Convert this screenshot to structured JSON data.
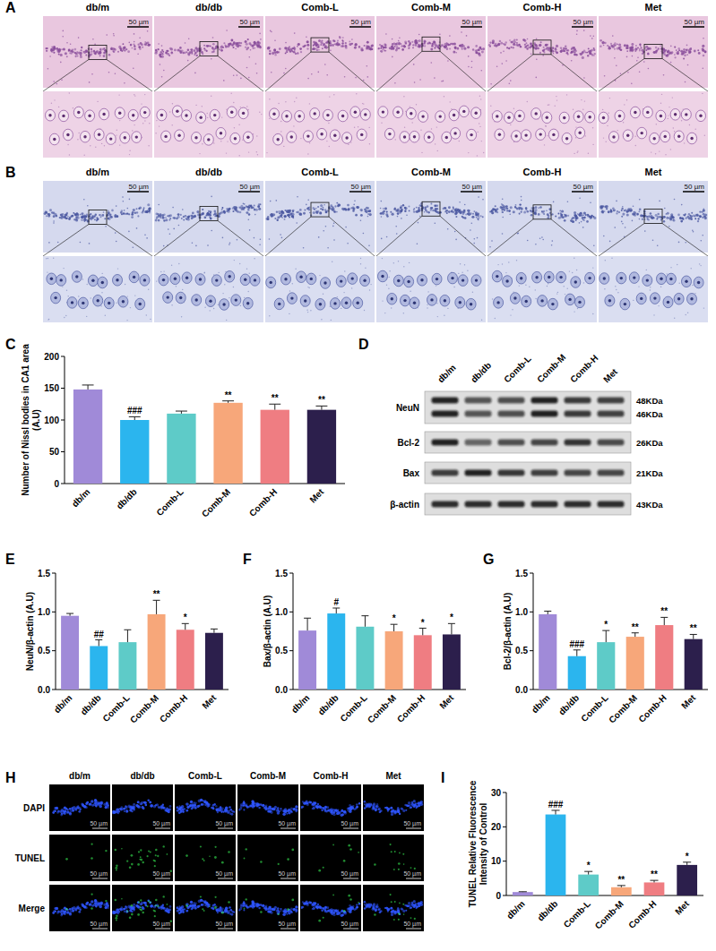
{
  "chart_data": [
    {
      "type": "bar",
      "panel": "C",
      "y_label": "Number of Nissl bodies in CA1 area (A.U)",
      "categories": [
        "db/m",
        "db/db",
        "Comb-L",
        "Comb-M",
        "Comb-H",
        "Met"
      ],
      "values": [
        148,
        100,
        110,
        127,
        116,
        116
      ],
      "errors": [
        7,
        5,
        4,
        3,
        9,
        6
      ],
      "annotations": [
        null,
        "###",
        null,
        "**",
        "**",
        "**"
      ],
      "colors": [
        "#a08ad8",
        "#2bb5ee",
        "#5ecbc8",
        "#f7a77a",
        "#ef7d82",
        "#2c1f4c"
      ],
      "ylim": [
        0,
        200
      ],
      "yticks": [
        0,
        50,
        100,
        150,
        200
      ]
    },
    {
      "type": "bar",
      "panel": "E",
      "y_label": "NeuN/β-actin (A.U)",
      "categories": [
        "db/m",
        "db/db",
        "Comb-L",
        "Comb-M",
        "Comb-H",
        "Met"
      ],
      "values": [
        0.95,
        0.56,
        0.61,
        0.97,
        0.77,
        0.73
      ],
      "errors": [
        0.03,
        0.08,
        0.16,
        0.18,
        0.08,
        0.05
      ],
      "annotations": [
        null,
        "##",
        null,
        "**",
        "*",
        null
      ],
      "colors": [
        "#a08ad8",
        "#2bb5ee",
        "#5ecbc8",
        "#f7a77a",
        "#ef7d82",
        "#2c1f4c"
      ],
      "ylim": [
        0,
        1.5
      ],
      "yticks": [
        {
          "value": 0,
          "label": "0.0"
        },
        {
          "value": 0.5,
          "label": "0.5"
        },
        {
          "value": 1,
          "label": "1.0"
        },
        {
          "value": 1.5,
          "label": "1.5"
        }
      ]
    },
    {
      "type": "bar",
      "panel": "F",
      "y_label": "Bax/β-actin (A.U)",
      "categories": [
        "db/m",
        "db/db",
        "Comb-L",
        "Comb-M",
        "Comb-H",
        "Met"
      ],
      "values": [
        0.76,
        0.98,
        0.81,
        0.75,
        0.7,
        0.71
      ],
      "errors": [
        0.16,
        0.07,
        0.14,
        0.09,
        0.09,
        0.14
      ],
      "annotations": [
        null,
        "#",
        null,
        "*",
        "*",
        "*"
      ],
      "colors": [
        "#a08ad8",
        "#2bb5ee",
        "#5ecbc8",
        "#f7a77a",
        "#ef7d82",
        "#2c1f4c"
      ],
      "ylim": [
        0,
        1.5
      ],
      "yticks": [
        {
          "value": 0,
          "label": "0.0"
        },
        {
          "value": 0.5,
          "label": "0.5"
        },
        {
          "value": 1,
          "label": "1.0"
        },
        {
          "value": 1.5,
          "label": "1.5"
        }
      ]
    },
    {
      "type": "bar",
      "panel": "G",
      "y_label": "Bcl-2/β-actin (A.U)",
      "categories": [
        "db/m",
        "db/db",
        "Comb-L",
        "Comb-M",
        "Comb-H",
        "Met"
      ],
      "values": [
        0.97,
        0.43,
        0.61,
        0.68,
        0.83,
        0.65
      ],
      "errors": [
        0.04,
        0.08,
        0.15,
        0.05,
        0.1,
        0.06
      ],
      "annotations": [
        null,
        "###",
        "*",
        "**",
        "**",
        "**"
      ],
      "colors": [
        "#a08ad8",
        "#2bb5ee",
        "#5ecbc8",
        "#f7a77a",
        "#ef7d82",
        "#2c1f4c"
      ],
      "ylim": [
        0,
        1.5
      ],
      "yticks": [
        {
          "value": 0,
          "label": "0.0"
        },
        {
          "value": 0.5,
          "label": "0.5"
        },
        {
          "value": 1,
          "label": "1.0"
        },
        {
          "value": 1.5,
          "label": "1.5"
        }
      ]
    },
    {
      "type": "bar",
      "panel": "I",
      "y_label": "TUNEL Relative Fluorescence Intensity of Control",
      "categories": [
        "db/m",
        "db/db",
        "Comb-L",
        "Comb-M",
        "Comb-H",
        "Met"
      ],
      "values": [
        1,
        23.6,
        6.1,
        2.4,
        3.8,
        8.9
      ],
      "errors": [
        0.1,
        1.2,
        0.9,
        0.5,
        0.6,
        0.8
      ],
      "annotations": [
        null,
        "###",
        "*",
        "**",
        "**",
        "*"
      ],
      "colors": [
        "#a08ad8",
        "#2bb5ee",
        "#5ecbc8",
        "#f7a77a",
        "#ef7d82",
        "#2c1f4c"
      ],
      "ylim": [
        0,
        30
      ],
      "yticks": [
        0,
        10,
        20,
        30
      ]
    }
  ],
  "panel_a": {
    "panel": "A",
    "columns": [
      "db/m",
      "db/db",
      "Comb-L",
      "Comb-M",
      "Comb-H",
      "Met"
    ],
    "scale_bar": "50 µm"
  },
  "panel_b": {
    "panel": "B",
    "columns": [
      "db/m",
      "db/db",
      "Comb-L",
      "Comb-M",
      "Comb-H",
      "Met"
    ],
    "scale_bar": "50 µm"
  },
  "panel_d": {
    "panel": "D",
    "lanes": [
      "db/m",
      "db/db",
      "Comb-L",
      "Comb-M",
      "Comb-H",
      "Met"
    ],
    "rows": [
      {
        "label": "NeuN",
        "kda": [
          "48KDa",
          "46KDa"
        ]
      },
      {
        "label": "Bcl-2",
        "kda": [
          "26KDa"
        ]
      },
      {
        "label": "Bax",
        "kda": [
          "21KDa"
        ]
      },
      {
        "label": "β-actin",
        "kda": [
          "43KDa"
        ]
      }
    ]
  },
  "panel_h": {
    "panel": "H",
    "columns": [
      "db/m",
      "db/db",
      "Comb-L",
      "Comb-M",
      "Comb-H",
      "Met"
    ],
    "rows": [
      "DAPI",
      "TUNEL",
      "Merge"
    ],
    "scale_bar": "50 µm"
  }
}
